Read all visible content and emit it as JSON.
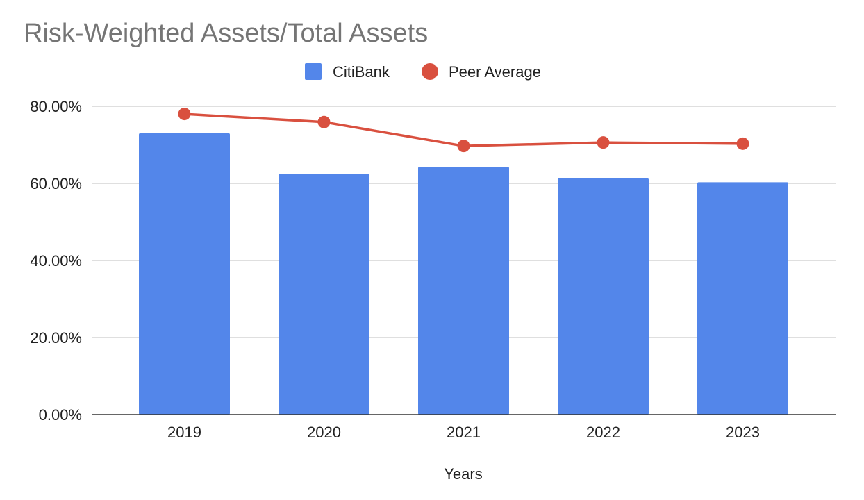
{
  "chart_data": {
    "type": "bar",
    "title": "Risk-Weighted Assets/Total Assets",
    "xlabel": "Years",
    "ylabel": "",
    "categories": [
      "2019",
      "2020",
      "2021",
      "2022",
      "2023"
    ],
    "series": [
      {
        "name": "CitiBank",
        "type": "bar",
        "color": "#5386EA",
        "values": [
          73.0,
          62.5,
          64.3,
          61.3,
          60.3
        ]
      },
      {
        "name": "Peer Average",
        "type": "line",
        "color": "#D9503F",
        "values": [
          78.0,
          75.9,
          69.7,
          70.6,
          70.3
        ]
      }
    ],
    "ylim": [
      0,
      80
    ],
    "yticks": [
      0,
      20,
      40,
      60,
      80
    ],
    "ytick_labels": [
      "0.00%",
      "20.00%",
      "40.00%",
      "60.00%",
      "80.00%"
    ],
    "grid": true,
    "legend_position": "top-center"
  }
}
